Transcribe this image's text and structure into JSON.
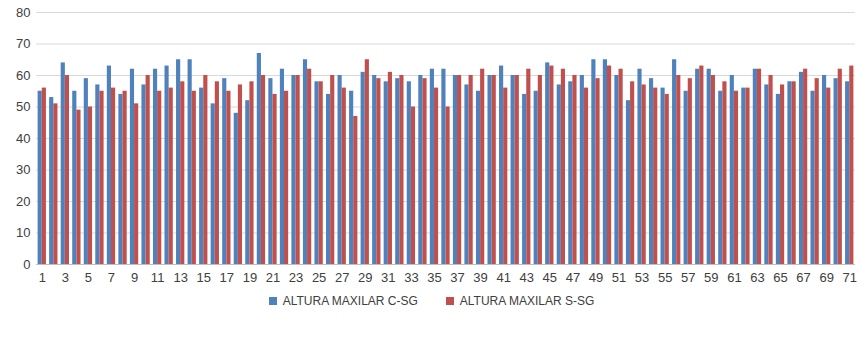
{
  "chart_data": {
    "type": "bar",
    "categories": [
      "1",
      null,
      "3",
      null,
      "5",
      null,
      "7",
      null,
      "9",
      null,
      "11",
      null,
      "13",
      null,
      "15",
      null,
      "17",
      null,
      "19",
      null,
      "21",
      null,
      "23",
      null,
      "25",
      null,
      "27",
      null,
      "29",
      null,
      "31",
      null,
      "33",
      null,
      "35",
      null,
      "37",
      null,
      "39",
      null,
      "41",
      null,
      "43",
      null,
      "45",
      null,
      "47",
      null,
      "49",
      null,
      "51",
      null,
      "53",
      null,
      "55",
      null,
      "57",
      null,
      "59",
      null,
      "61",
      null,
      "63",
      null,
      "65",
      null,
      "67",
      null,
      "69",
      null,
      "71"
    ],
    "series": [
      {
        "name": "ALTURA MAXILAR C-SG",
        "color": "#4f81bd",
        "values": [
          55,
          53,
          64,
          55,
          59,
          57,
          63,
          54,
          62,
          57,
          62,
          63,
          65,
          65,
          56,
          51,
          59,
          48,
          52,
          67,
          59,
          62,
          60,
          65,
          58,
          54,
          60,
          55,
          61,
          60,
          58,
          59,
          58,
          60,
          62,
          62,
          60,
          57,
          55,
          60,
          63,
          60,
          54,
          55,
          64,
          57,
          58,
          60,
          65,
          65,
          60,
          52,
          62,
          59,
          56,
          65,
          55,
          62,
          62,
          55,
          60,
          56,
          62,
          57,
          54,
          58,
          61,
          55,
          60,
          59,
          58
        ]
      },
      {
        "name": "ALTURA MAXILAR S-SG",
        "color": "#c0504d",
        "values": [
          56,
          51,
          60,
          49,
          50,
          55,
          56,
          55,
          51,
          60,
          55,
          56,
          58,
          55,
          60,
          58,
          55,
          57,
          58,
          60,
          54,
          55,
          60,
          62,
          58,
          60,
          56,
          47,
          65,
          59,
          61,
          60,
          50,
          59,
          56,
          50,
          60,
          60,
          62,
          60,
          56,
          60,
          62,
          60,
          63,
          62,
          60,
          56,
          59,
          63,
          62,
          58,
          57,
          56,
          54,
          60,
          59,
          63,
          60,
          58,
          55,
          56,
          62,
          60,
          57,
          58,
          62,
          59,
          56,
          62,
          63
        ]
      }
    ],
    "ylim": [
      0,
      80
    ],
    "yticks": [
      0,
      10,
      20,
      30,
      40,
      50,
      60,
      70,
      80
    ],
    "grid": true,
    "legend": "bottom"
  }
}
